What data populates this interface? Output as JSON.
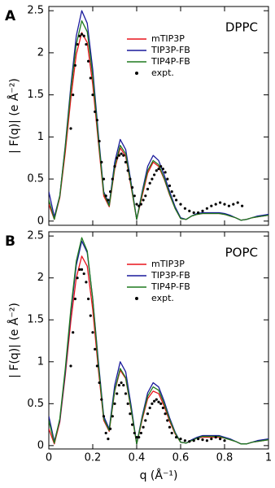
{
  "chart_data": [
    {
      "type": "line",
      "label": "A",
      "annotation": "DPPC",
      "ylabel": "| F(q)| (e Å⁻²)",
      "xlim": [
        0,
        1
      ],
      "xticks": [
        0,
        0.2,
        0.4,
        0.6,
        0.8,
        1
      ],
      "xtick_labels": false,
      "ylim": [
        -0.05,
        2.55
      ],
      "yticks": [
        0,
        0.5,
        1,
        1.5,
        2,
        2.5
      ],
      "legend": "upper right",
      "x": [
        0,
        0.025,
        0.05,
        0.075,
        0.1,
        0.125,
        0.15,
        0.175,
        0.2,
        0.225,
        0.25,
        0.275,
        0.3,
        0.325,
        0.35,
        0.375,
        0.4,
        0.425,
        0.45,
        0.475,
        0.5,
        0.525,
        0.55,
        0.575,
        0.6,
        0.625,
        0.65,
        0.675,
        0.7,
        0.725,
        0.75,
        0.775,
        0.8,
        0.825,
        0.85,
        0.875,
        0.9,
        0.925,
        0.95,
        0.975,
        1
      ],
      "series": [
        {
          "name": "mTIP3P",
          "color": "#e8141c",
          "values": [
            0.2,
            0.02,
            0.28,
            0.82,
            1.45,
            1.98,
            2.24,
            2.12,
            1.62,
            0.95,
            0.3,
            0.17,
            0.62,
            0.87,
            0.77,
            0.4,
            0.02,
            0.3,
            0.57,
            0.7,
            0.65,
            0.5,
            0.31,
            0.15,
            0.03,
            0.02,
            0.06,
            0.08,
            0.09,
            0.09,
            0.09,
            0.09,
            0.08,
            0.06,
            0.04,
            0.01,
            0.02,
            0.04,
            0.05,
            0.06,
            0.07
          ]
        },
        {
          "name": "TIP3P-FB",
          "color": "#1a1a9c",
          "values": [
            0.35,
            0.05,
            0.3,
            0.9,
            1.6,
            2.2,
            2.5,
            2.35,
            1.8,
            1.05,
            0.35,
            0.2,
            0.7,
            0.97,
            0.85,
            0.45,
            0.02,
            0.35,
            0.65,
            0.78,
            0.72,
            0.55,
            0.35,
            0.17,
            0.04,
            0.02,
            0.06,
            0.09,
            0.1,
            0.1,
            0.1,
            0.1,
            0.09,
            0.07,
            0.04,
            0.01,
            0.02,
            0.04,
            0.06,
            0.07,
            0.08
          ]
        },
        {
          "name": "TIP4P-FB",
          "color": "#1e7a1e",
          "values": [
            0.25,
            0.02,
            0.3,
            0.88,
            1.55,
            2.1,
            2.38,
            2.25,
            1.72,
            1.0,
            0.33,
            0.18,
            0.65,
            0.9,
            0.8,
            0.42,
            0.02,
            0.33,
            0.6,
            0.72,
            0.67,
            0.51,
            0.32,
            0.15,
            0.03,
            0.02,
            0.06,
            0.08,
            0.09,
            0.09,
            0.09,
            0.09,
            0.08,
            0.06,
            0.04,
            0.01,
            0.02,
            0.04,
            0.05,
            0.06,
            0.07
          ]
        },
        {
          "name": "expt.",
          "type": "scatter",
          "color": "#000000",
          "x": [
            0.1,
            0.11,
            0.12,
            0.13,
            0.14,
            0.15,
            0.16,
            0.17,
            0.18,
            0.19,
            0.2,
            0.21,
            0.22,
            0.23,
            0.24,
            0.25,
            0.26,
            0.27,
            0.28,
            0.29,
            0.3,
            0.31,
            0.32,
            0.33,
            0.34,
            0.35,
            0.36,
            0.37,
            0.38,
            0.39,
            0.4,
            0.41,
            0.42,
            0.43,
            0.44,
            0.45,
            0.46,
            0.47,
            0.48,
            0.49,
            0.5,
            0.51,
            0.52,
            0.53,
            0.54,
            0.55,
            0.56,
            0.57,
            0.58,
            0.6,
            0.62,
            0.64,
            0.66,
            0.68,
            0.7,
            0.72,
            0.74,
            0.76,
            0.78,
            0.8,
            0.82,
            0.84,
            0.86,
            0.88
          ],
          "values": [
            1.1,
            1.5,
            1.85,
            2.1,
            2.2,
            2.22,
            2.2,
            2.1,
            1.9,
            1.7,
            1.5,
            1.3,
            1.2,
            0.95,
            0.7,
            0.5,
            0.3,
            0.25,
            0.35,
            0.5,
            0.65,
            0.75,
            0.78,
            0.8,
            0.78,
            0.7,
            0.6,
            0.5,
            0.4,
            0.3,
            0.2,
            0.18,
            0.2,
            0.25,
            0.3,
            0.38,
            0.45,
            0.5,
            0.55,
            0.6,
            0.62,
            0.65,
            0.62,
            0.58,
            0.5,
            0.42,
            0.35,
            0.3,
            0.25,
            0.2,
            0.15,
            0.12,
            0.1,
            0.1,
            0.12,
            0.15,
            0.18,
            0.2,
            0.22,
            0.2,
            0.18,
            0.2,
            0.22,
            0.18
          ]
        }
      ]
    },
    {
      "type": "line",
      "label": "B",
      "annotation": "POPC",
      "ylabel": "| F(q)| (e Å⁻²)",
      "xlabel": "q (Å⁻¹)",
      "xlim": [
        0,
        1
      ],
      "xticks": [
        0,
        0.2,
        0.4,
        0.6,
        0.8,
        1
      ],
      "xtick_labels": true,
      "ylim": [
        -0.04,
        2.55
      ],
      "yticks": [
        0,
        0.5,
        1,
        1.5,
        2,
        2.5
      ],
      "legend": "upper right",
      "x": [
        0,
        0.025,
        0.05,
        0.075,
        0.1,
        0.125,
        0.15,
        0.175,
        0.2,
        0.225,
        0.25,
        0.275,
        0.3,
        0.325,
        0.35,
        0.375,
        0.4,
        0.425,
        0.45,
        0.475,
        0.5,
        0.525,
        0.55,
        0.575,
        0.6,
        0.625,
        0.65,
        0.675,
        0.7,
        0.725,
        0.75,
        0.775,
        0.8,
        0.825,
        0.85,
        0.875,
        0.9,
        0.925,
        0.95,
        0.975,
        1
      ],
      "series": [
        {
          "name": "mTIP3P",
          "color": "#e8141c",
          "values": [
            0.2,
            0.02,
            0.28,
            0.84,
            1.48,
            2.0,
            2.26,
            2.14,
            1.62,
            0.92,
            0.3,
            0.17,
            0.65,
            0.9,
            0.8,
            0.42,
            0.02,
            0.31,
            0.56,
            0.65,
            0.62,
            0.47,
            0.29,
            0.14,
            0.04,
            0.03,
            0.06,
            0.09,
            0.1,
            0.1,
            0.1,
            0.1,
            0.09,
            0.07,
            0.05,
            0.02,
            0.02,
            0.04,
            0.05,
            0.06,
            0.07
          ]
        },
        {
          "name": "TIP3P-FB",
          "color": "#1a1a9c",
          "values": [
            0.35,
            0.05,
            0.3,
            0.88,
            1.58,
            2.15,
            2.44,
            2.3,
            1.75,
            1.02,
            0.35,
            0.2,
            0.72,
            1.0,
            0.88,
            0.47,
            0.02,
            0.35,
            0.63,
            0.75,
            0.7,
            0.53,
            0.33,
            0.16,
            0.04,
            0.03,
            0.07,
            0.1,
            0.12,
            0.12,
            0.12,
            0.12,
            0.1,
            0.08,
            0.05,
            0.02,
            0.02,
            0.04,
            0.06,
            0.07,
            0.08
          ]
        },
        {
          "name": "TIP4P-FB",
          "color": "#1e7a1e",
          "values": [
            0.3,
            0.03,
            0.32,
            0.92,
            1.62,
            2.2,
            2.48,
            2.32,
            1.74,
            0.98,
            0.32,
            0.18,
            0.66,
            0.92,
            0.81,
            0.43,
            0.02,
            0.33,
            0.59,
            0.7,
            0.66,
            0.5,
            0.31,
            0.15,
            0.04,
            0.03,
            0.06,
            0.09,
            0.11,
            0.11,
            0.11,
            0.11,
            0.09,
            0.07,
            0.05,
            0.02,
            0.02,
            0.04,
            0.05,
            0.06,
            0.07
          ]
        },
        {
          "name": "expt.",
          "type": "scatter",
          "color": "#000000",
          "x": [
            0.1,
            0.11,
            0.12,
            0.13,
            0.14,
            0.15,
            0.16,
            0.17,
            0.18,
            0.19,
            0.2,
            0.21,
            0.22,
            0.23,
            0.24,
            0.25,
            0.26,
            0.27,
            0.28,
            0.29,
            0.3,
            0.31,
            0.32,
            0.33,
            0.34,
            0.35,
            0.36,
            0.37,
            0.38,
            0.39,
            0.4,
            0.41,
            0.42,
            0.43,
            0.44,
            0.45,
            0.46,
            0.47,
            0.48,
            0.49,
            0.5,
            0.51,
            0.52,
            0.53,
            0.54,
            0.55,
            0.56,
            0.58,
            0.6,
            0.62,
            0.64,
            0.66,
            0.68,
            0.7,
            0.72,
            0.74,
            0.76,
            0.78,
            0.8
          ],
          "values": [
            0.95,
            1.35,
            1.75,
            2.0,
            2.1,
            2.1,
            2.05,
            1.95,
            1.75,
            1.55,
            1.35,
            1.15,
            0.95,
            0.75,
            0.55,
            0.35,
            0.15,
            0.08,
            0.2,
            0.35,
            0.5,
            0.62,
            0.72,
            0.75,
            0.72,
            0.62,
            0.5,
            0.38,
            0.25,
            0.15,
            0.1,
            0.1,
            0.15,
            0.22,
            0.3,
            0.38,
            0.45,
            0.5,
            0.53,
            0.55,
            0.52,
            0.5,
            0.45,
            0.38,
            0.3,
            0.22,
            0.15,
            0.1,
            0.08,
            0.06,
            0.05,
            0.06,
            0.08,
            0.07,
            0.06,
            0.08,
            0.1,
            0.08,
            0.06
          ]
        }
      ]
    }
  ]
}
